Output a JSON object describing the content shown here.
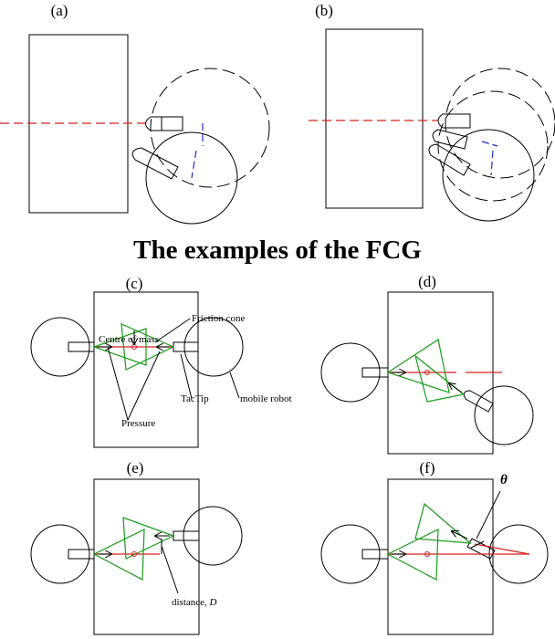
{
  "panels": [
    {
      "label": "(a)"
    },
    {
      "label": "(b)"
    },
    {
      "label": "(c)"
    },
    {
      "label": "(d)"
    },
    {
      "label": "(e)"
    },
    {
      "label": "(f)"
    }
  ],
  "heading": "The examples of the FCG",
  "annotations_c": {
    "friction_cone": "Friction cone",
    "centre_of_mass": "Centre of mass",
    "tactip": "TacTip",
    "pressure": "Pressure",
    "mobile_robot": "mobile robot"
  },
  "annotation_e": {
    "text": "distance, ",
    "symbol": "D"
  },
  "annotation_f": {
    "symbol": "θ"
  }
}
